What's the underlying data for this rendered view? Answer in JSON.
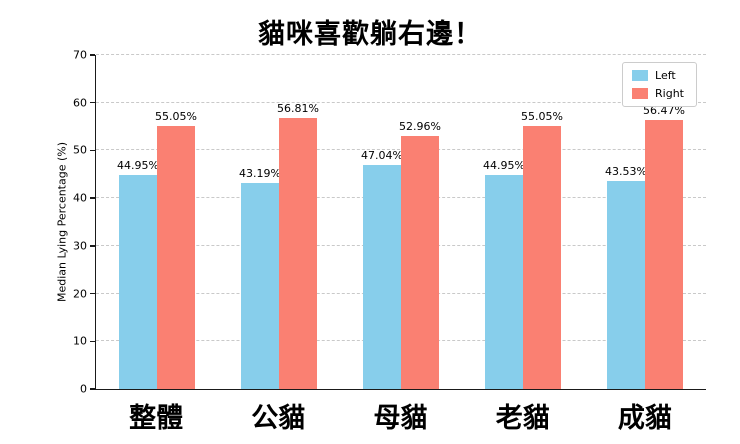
{
  "page": {
    "background": "#ffffff"
  },
  "chart_data": {
    "type": "bar",
    "title": "貓咪喜歡躺右邊！",
    "categories": [
      "整體",
      "公貓",
      "母貓",
      "老貓",
      "成貓"
    ],
    "series": [
      {
        "name": "Left",
        "color": "#87CEEB",
        "values": [
          44.95,
          43.19,
          47.04,
          44.95,
          43.53
        ],
        "labels": [
          "44.95%",
          "43.19%",
          "47.04%",
          "44.95%",
          "43.53%"
        ]
      },
      {
        "name": "Right",
        "color": "#FA8072",
        "values": [
          55.05,
          56.81,
          52.96,
          55.05,
          56.47
        ],
        "labels": [
          "55.05%",
          "56.81%",
          "52.96%",
          "55.05%",
          "56.47%"
        ]
      }
    ],
    "xlabel": "",
    "ylabel": "Median Lying Percentage (%)",
    "ylim": [
      0,
      70
    ],
    "yticks": [
      0,
      10,
      20,
      30,
      40,
      50,
      60,
      70
    ],
    "grid": "horizontal-dashed",
    "legend": {
      "position": "top-right",
      "entries": [
        "Left",
        "Right"
      ]
    }
  }
}
